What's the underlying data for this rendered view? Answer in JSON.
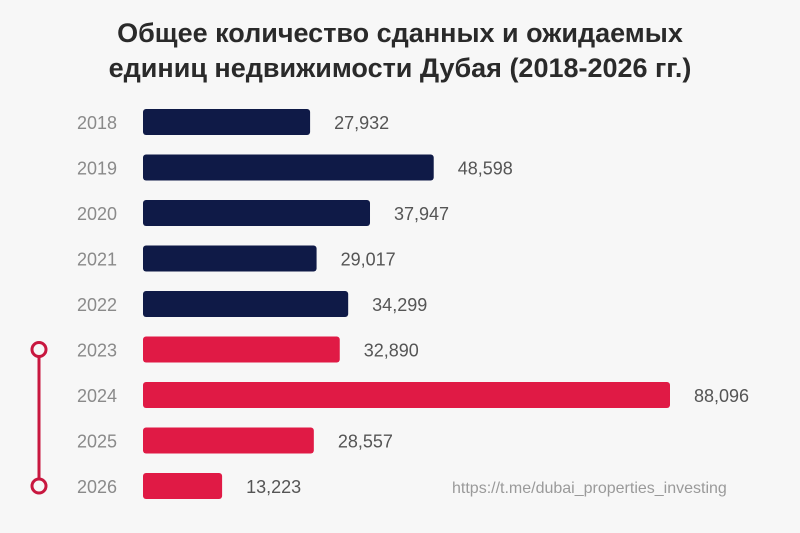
{
  "chart_data": {
    "type": "bar",
    "orientation": "horizontal",
    "title_lines": [
      "Общее количество сданных и ожидаемых",
      "единиц недвижимости Дубая (2018-2026 гг.)"
    ],
    "categories": [
      "2018",
      "2019",
      "2020",
      "2021",
      "2022",
      "2023",
      "2024",
      "2025",
      "2026"
    ],
    "values": [
      27932,
      48598,
      37947,
      29017,
      34299,
      32890,
      88096,
      28557,
      13223
    ],
    "value_labels": [
      "27,932",
      "48,598",
      "37,947",
      "29,017",
      "34,299",
      "32,890",
      "88,096",
      "28,557",
      "13,223"
    ],
    "bar_colors": [
      "#0f1a47",
      "#0f1a47",
      "#0f1a47",
      "#0f1a47",
      "#0f1a47",
      "#e01a45",
      "#e01a45",
      "#e01a45",
      "#e01a45"
    ],
    "xlim": [
      0,
      88096
    ],
    "grid": false,
    "timeline_bracket": {
      "from": "2023",
      "to": "2026",
      "color": "#c8173f"
    }
  },
  "watermark": "https://t.me/dubai_properties_investing"
}
